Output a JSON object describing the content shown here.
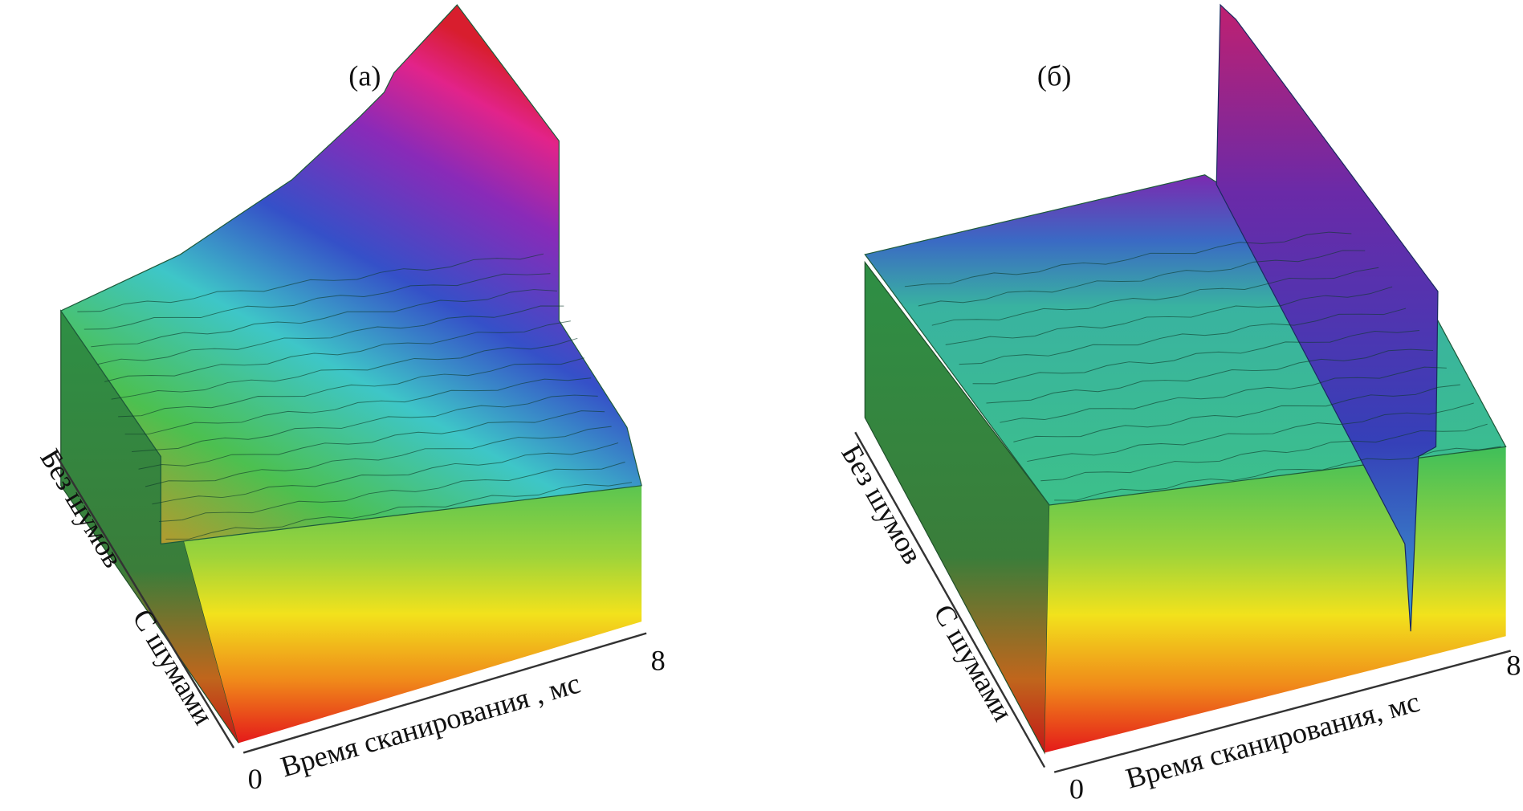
{
  "panels": [
    {
      "label": "(а)",
      "depth_labels": [
        "Без шумов",
        "С шумами"
      ],
      "axis_title": "Время сканирования , мс",
      "axis_start": "0",
      "axis_end": "8"
    },
    {
      "label": "(б)",
      "depth_labels": [
        "Без шумов",
        "С шумами"
      ],
      "axis_title": "Время сканирования, мс",
      "axis_start": "0",
      "axis_end": "8"
    }
  ]
}
